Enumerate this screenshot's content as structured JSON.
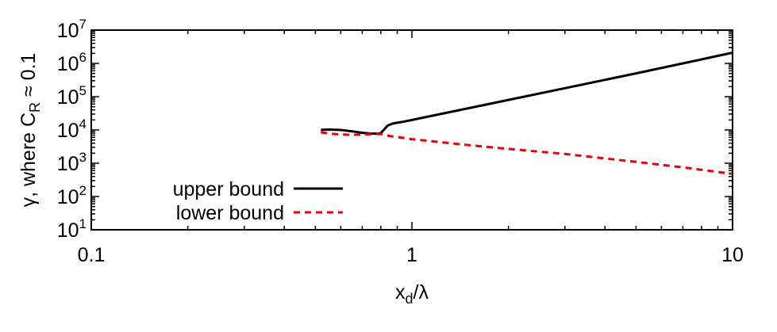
{
  "chart_data": {
    "type": "line",
    "xscale": "log",
    "yscale": "log",
    "xlim": [
      0.1,
      10
    ],
    "ylim": [
      10,
      10000000
    ],
    "xticks": [
      {
        "value": 0.1,
        "label": "0.1"
      },
      {
        "value": 1,
        "label": "1"
      },
      {
        "value": 10,
        "label": "10"
      }
    ],
    "yticks": [
      {
        "value": 10,
        "base": "10",
        "exp": "1"
      },
      {
        "value": 100,
        "base": "10",
        "exp": "2"
      },
      {
        "value": 1000,
        "base": "10",
        "exp": "3"
      },
      {
        "value": 10000,
        "base": "10",
        "exp": "4"
      },
      {
        "value": 100000,
        "base": "10",
        "exp": "5"
      },
      {
        "value": 1000000,
        "base": "10",
        "exp": "6"
      },
      {
        "value": 10000000,
        "base": "10",
        "exp": "7"
      }
    ],
    "xlabel": {
      "main": "x",
      "sub": "d",
      "rest": "/λ"
    },
    "ylabel": {
      "pre": "γ,  where  C",
      "sub": "R",
      "post": " ≈ 0.1"
    },
    "grid": false,
    "legend": "bottom-left",
    "series": [
      {
        "name": "upper bound",
        "color": "#000000",
        "dash": "solid",
        "x": [
          0.52,
          0.55,
          0.6,
          0.65,
          0.7,
          0.74,
          0.78,
          0.8,
          0.82,
          0.84,
          0.87,
          0.9,
          0.95,
          1.0,
          1.5,
          2,
          3,
          5,
          7,
          10
        ],
        "y": [
          10000,
          10300,
          10000,
          9100,
          8200,
          7800,
          7700,
          8000,
          10500,
          13500,
          15500,
          16500,
          18000,
          20000,
          45000,
          80000,
          180000,
          500000,
          1000000,
          2100000
        ]
      },
      {
        "name": "lower bound",
        "color": "#e8000b",
        "dash": "dashed",
        "x": [
          0.52,
          0.56,
          0.6,
          0.65,
          0.7,
          0.75,
          0.8,
          0.85,
          1.0,
          1.5,
          2,
          3,
          5,
          7,
          10
        ],
        "y": [
          8500,
          7700,
          7300,
          7100,
          7200,
          7500,
          7600,
          6600,
          5300,
          3500,
          2700,
          1900,
          1100,
          750,
          480
        ]
      }
    ]
  }
}
